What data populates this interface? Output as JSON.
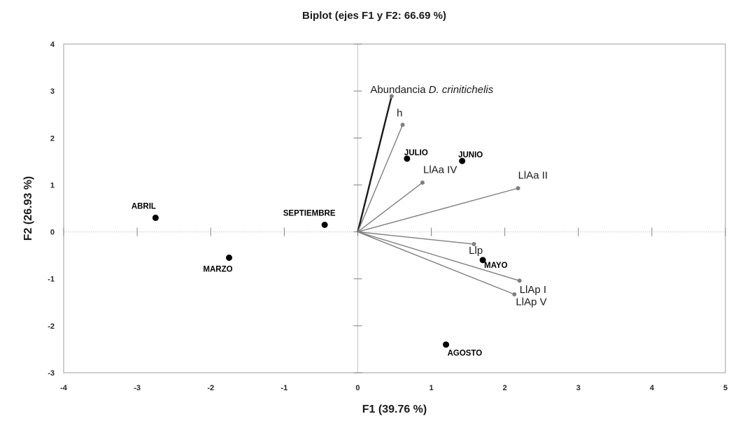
{
  "chart_data": {
    "type": "scatter",
    "subtype": "pca-biplot",
    "title": "Biplot (ejes F1 y F2: 66.69 %)",
    "xlabel": "F1 (39.76 %)",
    "ylabel": "F2 (26.93 %)",
    "xlim": [
      -4,
      5
    ],
    "ylim": [
      -3,
      4
    ],
    "xticks": [
      -4,
      -3,
      -2,
      -1,
      0,
      1,
      2,
      3,
      4,
      5
    ],
    "yticks": [
      -3,
      -2,
      -1,
      0,
      1,
      2,
      3,
      4
    ],
    "grid": false,
    "legend": "none",
    "observations": [
      {
        "name": "ABRIL",
        "x": -2.75,
        "y": 0.3,
        "anchor": "middle",
        "dx": -17,
        "dy": -13
      },
      {
        "name": "MARZO",
        "x": -1.75,
        "y": -0.55,
        "anchor": "middle",
        "dx": -16,
        "dy": 20
      },
      {
        "name": "SEPTIEMBRE",
        "x": -0.45,
        "y": 0.15,
        "anchor": "middle",
        "dx": -22,
        "dy": -13
      },
      {
        "name": "JULIO",
        "x": 0.67,
        "y": 1.56,
        "anchor": "middle",
        "dx": 13,
        "dy": -5
      },
      {
        "name": "JUNIO",
        "x": 1.42,
        "y": 1.51,
        "anchor": "middle",
        "dx": 12,
        "dy": -5
      },
      {
        "name": "MAYO",
        "x": 1.7,
        "y": -0.6,
        "anchor": "start",
        "dx": 2,
        "dy": 11
      },
      {
        "name": "AGOSTO",
        "x": 1.2,
        "y": -2.4,
        "anchor": "start",
        "dx": 2,
        "dy": 16
      }
    ],
    "variables": [
      {
        "name": "Abundancia D. crinitichelis",
        "label_parts": [
          {
            "text": "Abundancia ",
            "italic": false
          },
          {
            "text": "D. crinitichelis",
            "italic": true
          }
        ],
        "x": 0.46,
        "y": 2.89,
        "lx": 0.17,
        "ly": 2.96,
        "anchor": "start",
        "highlight": true
      },
      {
        "name": "h",
        "label_parts": [
          {
            "text": "h",
            "italic": false
          }
        ],
        "x": 0.61,
        "y": 2.28,
        "lx": 0.53,
        "ly": 2.46,
        "anchor": "start",
        "highlight": false
      },
      {
        "name": "LlAa IV",
        "label_parts": [
          {
            "text": "LlAa IV",
            "italic": false
          }
        ],
        "x": 0.88,
        "y": 1.05,
        "lx": 0.89,
        "ly": 1.25,
        "anchor": "start",
        "highlight": false
      },
      {
        "name": "LlAa II",
        "label_parts": [
          {
            "text": "LlAa II",
            "italic": false
          }
        ],
        "x": 2.18,
        "y": 0.93,
        "lx": 2.18,
        "ly": 1.13,
        "anchor": "start",
        "highlight": false
      },
      {
        "name": "Llp",
        "label_parts": [
          {
            "text": "Llp",
            "italic": false
          }
        ],
        "x": 1.58,
        "y": -0.26,
        "lx": 1.51,
        "ly": -0.47,
        "anchor": "start",
        "highlight": false
      },
      {
        "name": "LlAp I",
        "label_parts": [
          {
            "text": "LlAp I",
            "italic": false
          }
        ],
        "x": 2.2,
        "y": -1.04,
        "lx": 2.2,
        "ly": -1.3,
        "anchor": "start",
        "highlight": false
      },
      {
        "name": "LlAp V",
        "label_parts": [
          {
            "text": "LlAp V",
            "italic": false
          }
        ],
        "x": 2.13,
        "y": -1.33,
        "lx": 2.15,
        "ly": -1.56,
        "anchor": "start",
        "highlight": false
      }
    ],
    "colors": {
      "observation_point": "#000000",
      "vector": "#7f7f7f",
      "vector_highlight": "#1a1a1a",
      "frame": "#b3b3b3",
      "zero_line": "#c4c4c4",
      "tick": "#808080",
      "text": "#1a1a1a"
    }
  }
}
